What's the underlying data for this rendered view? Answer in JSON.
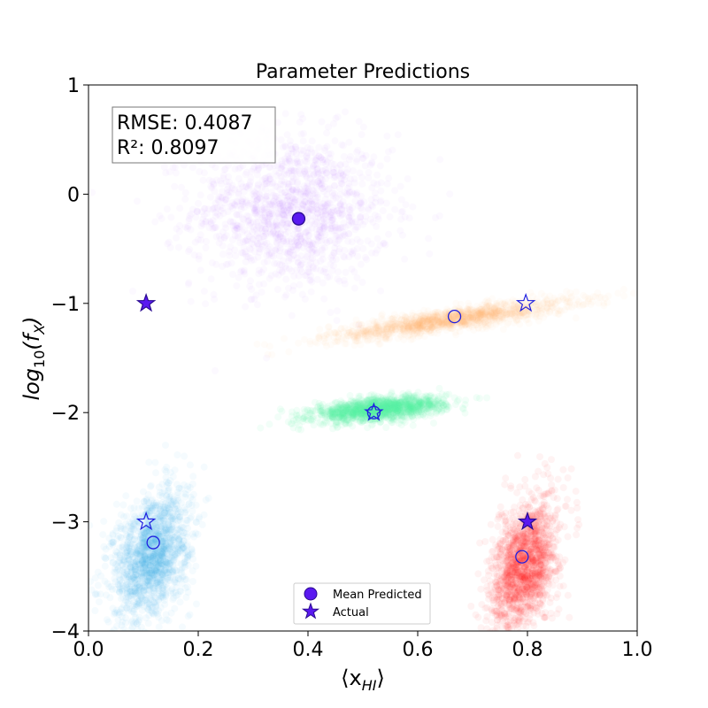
{
  "chart_data": {
    "type": "scatter",
    "title": "Parameter Predictions",
    "xlabel_main": "⟨x",
    "xlabel_sub": "HI",
    "xlabel_close": "⟩",
    "ylabel_main": "log",
    "ylabel_sub1": "10",
    "ylabel_mid": "(f",
    "ylabel_sub2": "X",
    "ylabel_close": ")",
    "xlim": [
      0.0,
      1.0
    ],
    "ylim": [
      -4,
      1
    ],
    "xticks": [
      "0.0",
      "0.2",
      "0.4",
      "0.6",
      "0.8",
      "1.0"
    ],
    "yticks": [
      "1",
      "0",
      "−1",
      "−2",
      "−3",
      "−4"
    ],
    "metrics": {
      "rmse": "RMSE: 0.4087",
      "r2": "R²: 0.8097"
    },
    "legend": {
      "mean": "Mean Predicted",
      "actual": "Actual",
      "placement": "lower-center"
    },
    "marker_color": "#5a19f0",
    "clusters": [
      {
        "color": "#9c3cf8",
        "cloud_center": [
          0.37,
          -0.15
        ],
        "cloud_sd": [
          0.09,
          0.35
        ],
        "slope": 0.0,
        "npts": 1400,
        "alpha": 0.03,
        "mean_predicted": [
          0.383,
          -0.225
        ],
        "actual": [
          0.105,
          -1.0
        ],
        "mean_filled": true,
        "actual_filled": true
      },
      {
        "color": "#ffa760",
        "cloud_center": [
          0.66,
          -1.15
        ],
        "cloud_sd": [
          0.11,
          0.05
        ],
        "slope": 0.7,
        "npts": 1400,
        "alpha": 0.04,
        "mean_predicted": [
          0.667,
          -1.12
        ],
        "actual": [
          0.797,
          -1.0
        ],
        "mean_filled": false,
        "actual_filled": false
      },
      {
        "color": "#5cf5a0",
        "cloud_center": [
          0.53,
          -1.97
        ],
        "cloud_sd": [
          0.06,
          0.05
        ],
        "slope": 0.45,
        "npts": 1400,
        "alpha": 0.08,
        "mean_predicted": [
          0.52,
          -2.0
        ],
        "actual": [
          0.52,
          -2.0
        ],
        "mean_filled": false,
        "actual_filled": false
      },
      {
        "color": "#3aaee8",
        "cloud_center": [
          0.115,
          -3.3
        ],
        "cloud_sd": [
          0.035,
          0.28
        ],
        "slope": 3.0,
        "npts": 1600,
        "alpha": 0.05,
        "mean_predicted": [
          0.118,
          -3.19
        ],
        "actual": [
          0.105,
          -3.0
        ],
        "mean_filled": false,
        "actual_filled": false
      },
      {
        "color": "#ff1a10",
        "cloud_center": [
          0.795,
          -3.4
        ],
        "cloud_sd": [
          0.03,
          0.28
        ],
        "slope": 4.0,
        "npts": 1600,
        "alpha": 0.05,
        "mean_predicted": [
          0.79,
          -3.32
        ],
        "actual": [
          0.8,
          -3.0
        ],
        "mean_filled": false,
        "actual_filled": true
      }
    ]
  }
}
